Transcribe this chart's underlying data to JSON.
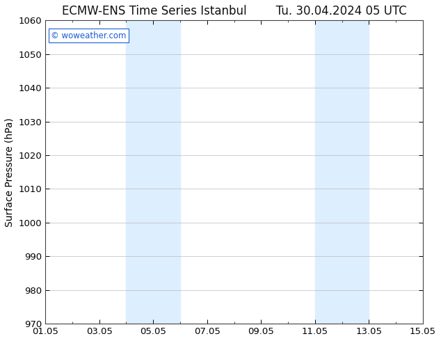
{
  "title": "ECMW-ENS Time Series Istanbul",
  "title2": "Tu. 30.04.2024 05 UTC",
  "ylabel": "Surface Pressure (hPa)",
  "ylim": [
    970,
    1060
  ],
  "yticks": [
    970,
    980,
    990,
    1000,
    1010,
    1020,
    1030,
    1040,
    1050,
    1060
  ],
  "xlim": [
    0,
    14
  ],
  "xtick_labels": [
    "01.05",
    "03.05",
    "05.05",
    "07.05",
    "09.05",
    "11.05",
    "13.05",
    "15.05"
  ],
  "xtick_positions": [
    0,
    2,
    4,
    6,
    8,
    10,
    12,
    14
  ],
  "background_color": "#ffffff",
  "plot_bg_color": "#ffffff",
  "shade_regions": [
    {
      "x_start": 3,
      "x_end": 5
    },
    {
      "x_start": 10,
      "x_end": 12
    }
  ],
  "shade_color": "#ddeeff",
  "watermark": "© woweather.com",
  "watermark_color": "#1a5cd6",
  "title_fontsize": 12,
  "tick_fontsize": 9.5,
  "ylabel_fontsize": 10,
  "grid_color": "#bbbbbb",
  "border_color": "#444444"
}
